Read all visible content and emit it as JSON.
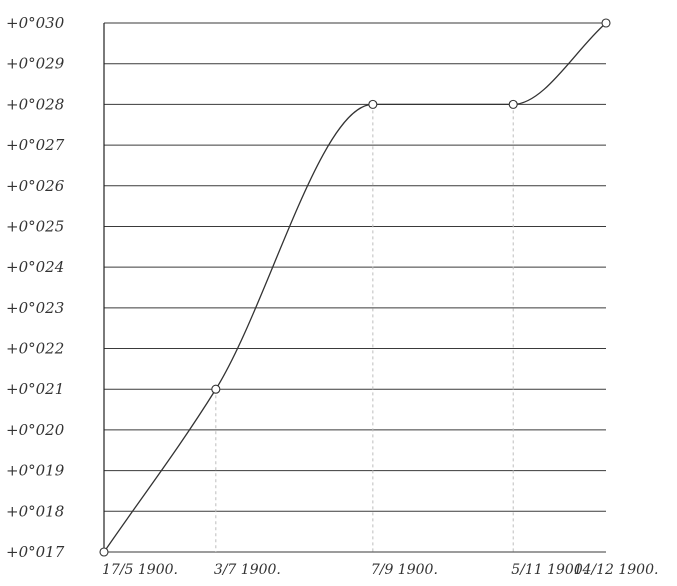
{
  "chart_data": {
    "type": "line",
    "title": "",
    "xlabel": "",
    "ylabel": "",
    "x": [
      "17/5 1900.",
      "3/7 1900.",
      "7/9 1900.",
      "5/11 1900.",
      "14/12 1900."
    ],
    "x_days": [
      0,
      47,
      113,
      172,
      211
    ],
    "series": [
      {
        "values": [
          0.017,
          0.021,
          0.028,
          0.028,
          0.03
        ]
      }
    ],
    "y_ticks": [
      0.017,
      0.018,
      0.019,
      0.02,
      0.021,
      0.022,
      0.023,
      0.024,
      0.025,
      0.026,
      0.027,
      0.028,
      0.029,
      0.03
    ],
    "y_tick_labels": [
      "+0°017",
      "+0°018",
      "+0°019",
      "+0°020",
      "+0°021",
      "+0°022",
      "+0°023",
      "+0°024",
      "+0°025",
      "+0°026",
      "+0°027",
      "+0°028",
      "+0°029",
      "+0°030"
    ],
    "ylim": [
      0.017,
      0.03
    ],
    "grid": true,
    "legend": "none"
  }
}
